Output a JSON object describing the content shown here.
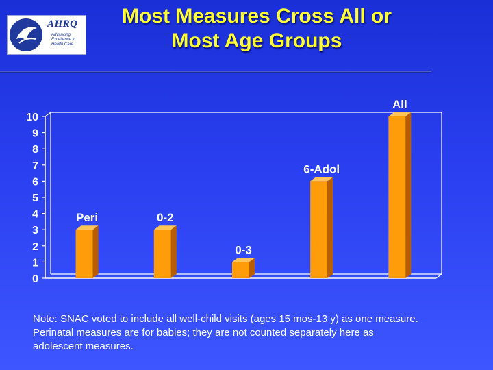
{
  "header": {
    "logo": {
      "name": "AHRQ",
      "tagline": [
        "Advancing",
        "Excellence in",
        "Health Care"
      ]
    },
    "title_lines": [
      "Most Measures Cross All or",
      "Most Age Groups"
    ]
  },
  "chart_data": {
    "type": "bar",
    "categories": [
      "Peri",
      "0-2",
      "0-3",
      "6-Adol",
      "All"
    ],
    "values": [
      3,
      3,
      1,
      6,
      10
    ],
    "yticks": [
      "0",
      "1",
      "2",
      "3",
      "4",
      "5",
      "6",
      "7",
      "8",
      "9",
      "10"
    ],
    "ylim": [
      0,
      10
    ],
    "grid": false,
    "colors": {
      "bar": "#ff9c0a",
      "bar_side": "#b85e00",
      "bar_top": "#ffc55a",
      "axis": "#ffffff",
      "text": "#ffffff"
    }
  },
  "note_lines": [
    "Note:   SNAC voted to include all well-child visits (ages 15 mos-13 y) as one measure.",
    "Perinatal measures are for babies; they are not counted separately here as",
    "adolescent measures."
  ],
  "colors": {
    "title": "#ffff33",
    "background": "#2a3ff0"
  }
}
